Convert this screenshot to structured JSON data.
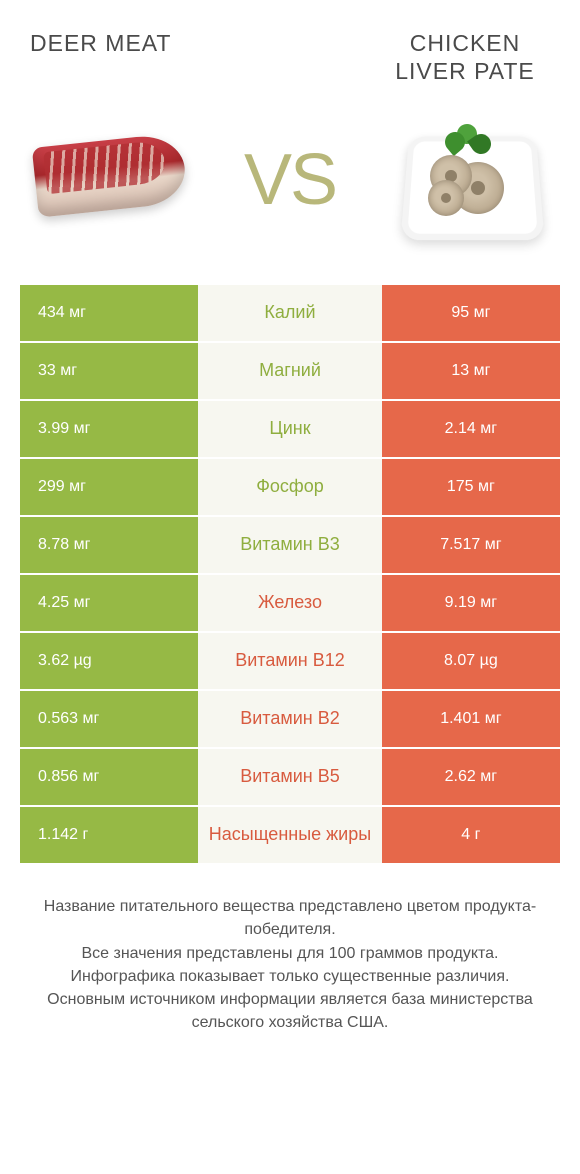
{
  "colors": {
    "green": "#96b945",
    "orange": "#e6684a",
    "green_text": "#8fae3f",
    "orange_text": "#d85b3f",
    "mid_bg": "#f7f7f0",
    "vs": "#b8b77a",
    "title": "#4a4a4a"
  },
  "header": {
    "left": "DEER MEAT",
    "right": "CHICKEN\nLIVER PATE",
    "vs": "VS"
  },
  "rows": [
    {
      "left": "434 мг",
      "mid": "Калий",
      "right": "95 мг",
      "winner": "left"
    },
    {
      "left": "33 мг",
      "mid": "Магний",
      "right": "13 мг",
      "winner": "left"
    },
    {
      "left": "3.99 мг",
      "mid": "Цинк",
      "right": "2.14 мг",
      "winner": "left"
    },
    {
      "left": "299 мг",
      "mid": "Фосфор",
      "right": "175 мг",
      "winner": "left"
    },
    {
      "left": "8.78 мг",
      "mid": "Витамин B3",
      "right": "7.517 мг",
      "winner": "left"
    },
    {
      "left": "4.25 мг",
      "mid": "Железо",
      "right": "9.19 мг",
      "winner": "right"
    },
    {
      "left": "3.62 µg",
      "mid": "Витамин B12",
      "right": "8.07 µg",
      "winner": "right"
    },
    {
      "left": "0.563 мг",
      "mid": "Витамин B2",
      "right": "1.401 мг",
      "winner": "right"
    },
    {
      "left": "0.856 мг",
      "mid": "Витамин B5",
      "right": "2.62 мг",
      "winner": "right"
    },
    {
      "left": "1.142 г",
      "mid": "Насыщенные жиры",
      "right": "4 г",
      "winner": "right"
    }
  ],
  "footer_lines": [
    "Название питательного вещества представлено цветом продукта-победителя.",
    "Все значения представлены для 100 граммов продукта.",
    "Инфографика показывает только существенные различия.",
    "Основным источником информации является база министерства сельского хозяйства США."
  ]
}
